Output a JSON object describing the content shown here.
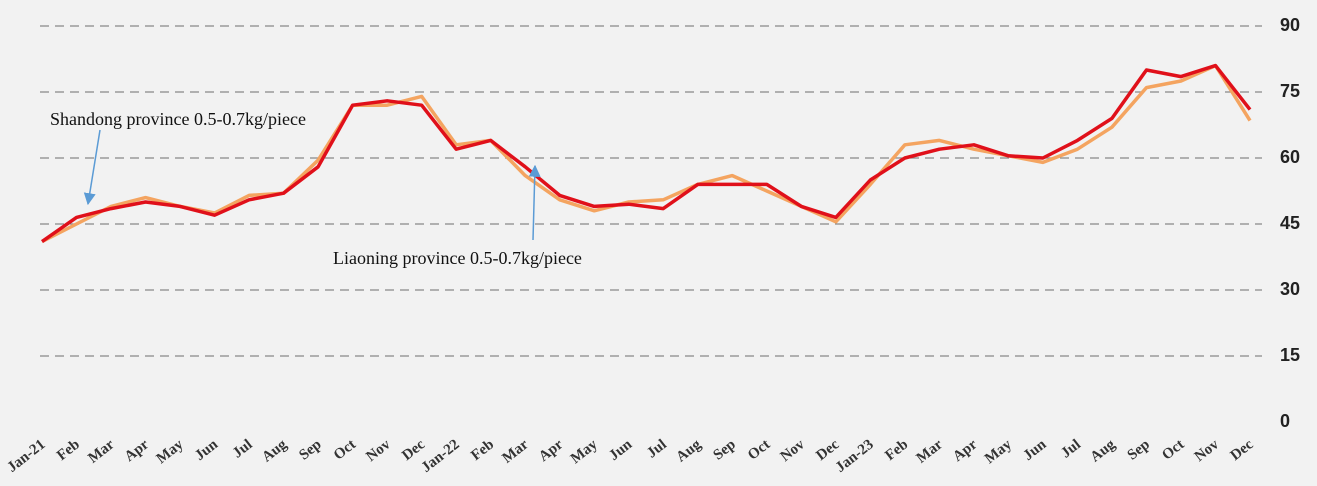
{
  "chart_data": {
    "type": "line",
    "categories": [
      "Jan-21",
      "Feb",
      "Mar",
      "Apr",
      "May",
      "Jun",
      "Jul",
      "Aug",
      "Sep",
      "Oct",
      "Nov",
      "Dec",
      "Jan-22",
      "Feb",
      "Mar",
      "Apr",
      "May",
      "Jun",
      "Jul",
      "Aug",
      "Sep",
      "Oct",
      "Nov",
      "Dec",
      "Jan-23",
      "Feb",
      "Mar",
      "Apr",
      "May",
      "Jun",
      "Jul",
      "Aug",
      "Sep",
      "Oct",
      "Nov",
      "Dec"
    ],
    "series": [
      {
        "color": "#f4a460",
        "values": [
          41,
          45,
          49,
          51,
          49,
          47.5,
          51.5,
          52,
          59.5,
          72,
          72,
          74,
          63,
          64,
          56,
          50.5,
          48,
          50,
          50.5,
          54,
          56,
          52.5,
          49,
          45.5,
          54,
          63,
          64,
          62,
          60.5,
          59,
          62,
          67,
          76,
          77.5,
          81,
          68.5
        ]
      },
      {
        "color": "#e0101a",
        "values": [
          41,
          46.5,
          48.5,
          50,
          49,
          47,
          50.5,
          52,
          58,
          72,
          73,
          72,
          62,
          64,
          58,
          51.5,
          49,
          49.5,
          48.5,
          54,
          54,
          54,
          49,
          46.5,
          55,
          60,
          62,
          63,
          60.5,
          60,
          64,
          69,
          80,
          78.5,
          81,
          71
        ]
      }
    ],
    "annotations": [
      "Shandong province 0.5-0.7kg/piece",
      "Liaoning province 0.5-0.7kg/piece"
    ],
    "ylim": [
      0,
      90
    ],
    "yticks": [
      0,
      15,
      30,
      45,
      60,
      75,
      90
    ],
    "grid": true,
    "y_axis_side": "right"
  }
}
